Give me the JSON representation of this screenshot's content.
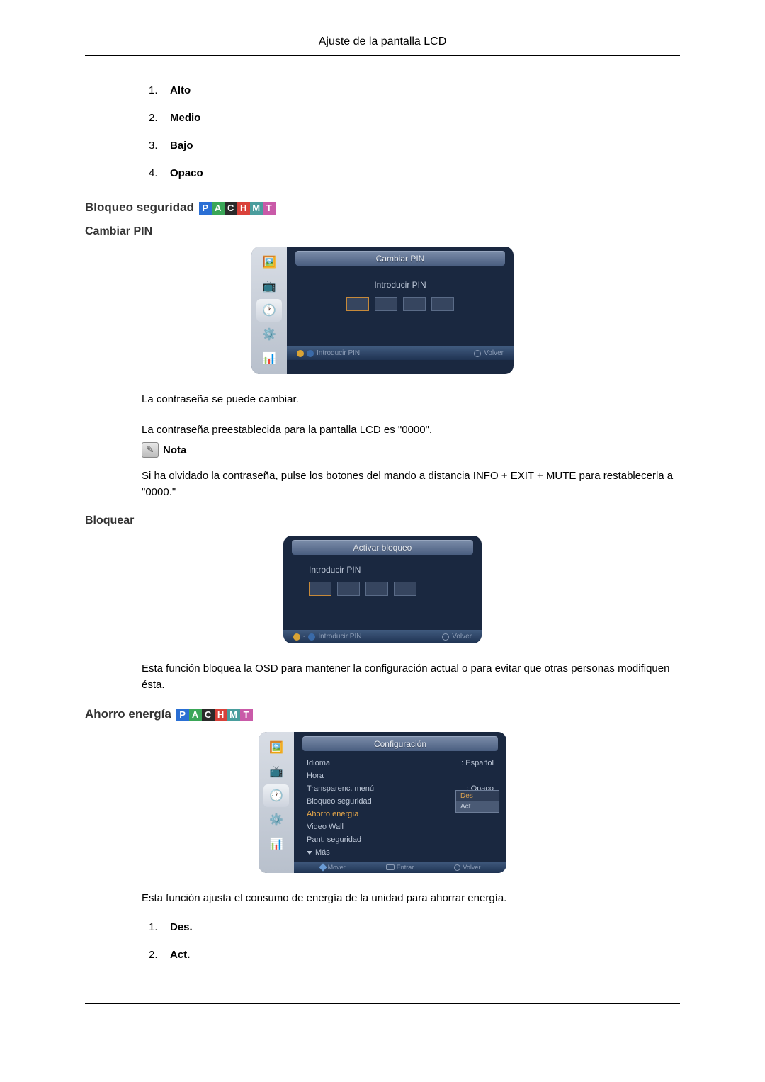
{
  "header": {
    "title": "Ajuste de la pantalla LCD"
  },
  "list1": {
    "items": [
      {
        "n": "1.",
        "label": "Alto"
      },
      {
        "n": "2.",
        "label": "Medio"
      },
      {
        "n": "3.",
        "label": "Bajo"
      },
      {
        "n": "4.",
        "label": "Opaco"
      }
    ]
  },
  "pachmt": {
    "letters": [
      "P",
      "A",
      "C",
      "H",
      "M",
      "T"
    ],
    "colors": [
      "#2a6fd4",
      "#3aa657",
      "#2a2a2a",
      "#d9413a",
      "#4a9d9d",
      "#c95aa8"
    ]
  },
  "section_bloqueo": {
    "title": "Bloqueo seguridad"
  },
  "cambiar_pin": {
    "heading": "Cambiar PIN",
    "osd_title": "Cambiar PIN",
    "pin_label": "Introducir PIN",
    "footer_left": "Introducir PIN",
    "footer_right": "Volver"
  },
  "para1": "La contraseña se puede cambiar.",
  "para2": "La contraseña preestablecida para la pantalla LCD es \"0000\".",
  "nota": {
    "label": "Nota"
  },
  "para3": "Si ha olvidado la contraseña, pulse los botones del mando a distancia INFO + EXIT + MUTE para restablecerla a \"0000.\"",
  "bloquear": {
    "heading": "Bloquear",
    "osd_title": "Activar bloqueo",
    "pin_label": "Introducir PIN",
    "footer_left": "Introducir PIN",
    "footer_right": "Volver"
  },
  "para4": "Esta función bloquea la OSD para mantener la configuración actual o para evitar que otras personas modifiquen ésta.",
  "ahorro": {
    "heading": "Ahorro energía",
    "osd_title": "Configuración",
    "menu": [
      {
        "label": "Idioma",
        "val": "Español"
      },
      {
        "label": "Hora",
        "val": ""
      },
      {
        "label": "Transparenc. menú",
        "val": "Opaco"
      },
      {
        "label": "Bloqueo seguridad",
        "val": ""
      },
      {
        "label": "Ahorro energía",
        "val": "",
        "hi": true
      },
      {
        "label": "Video Wall",
        "val": ""
      },
      {
        "label": "Pant. seguridad",
        "val": ""
      }
    ],
    "more": "Más",
    "popup": {
      "opts": [
        "Des",
        "Act"
      ],
      "sel": 0
    },
    "footer": {
      "move": "Mover",
      "enter": "Entrar",
      "back": "Volver"
    }
  },
  "para5": "Esta función ajusta el consumo de energía de la unidad para ahorrar energía.",
  "list2": {
    "items": [
      {
        "n": "1.",
        "label": "Des."
      },
      {
        "n": "2.",
        "label": "Act."
      }
    ]
  },
  "icons": {
    "picture": "🖼️",
    "input": "📺",
    "clock": "🕐",
    "gear": "⚙️",
    "chart": "📊",
    "pencil": "✎"
  }
}
